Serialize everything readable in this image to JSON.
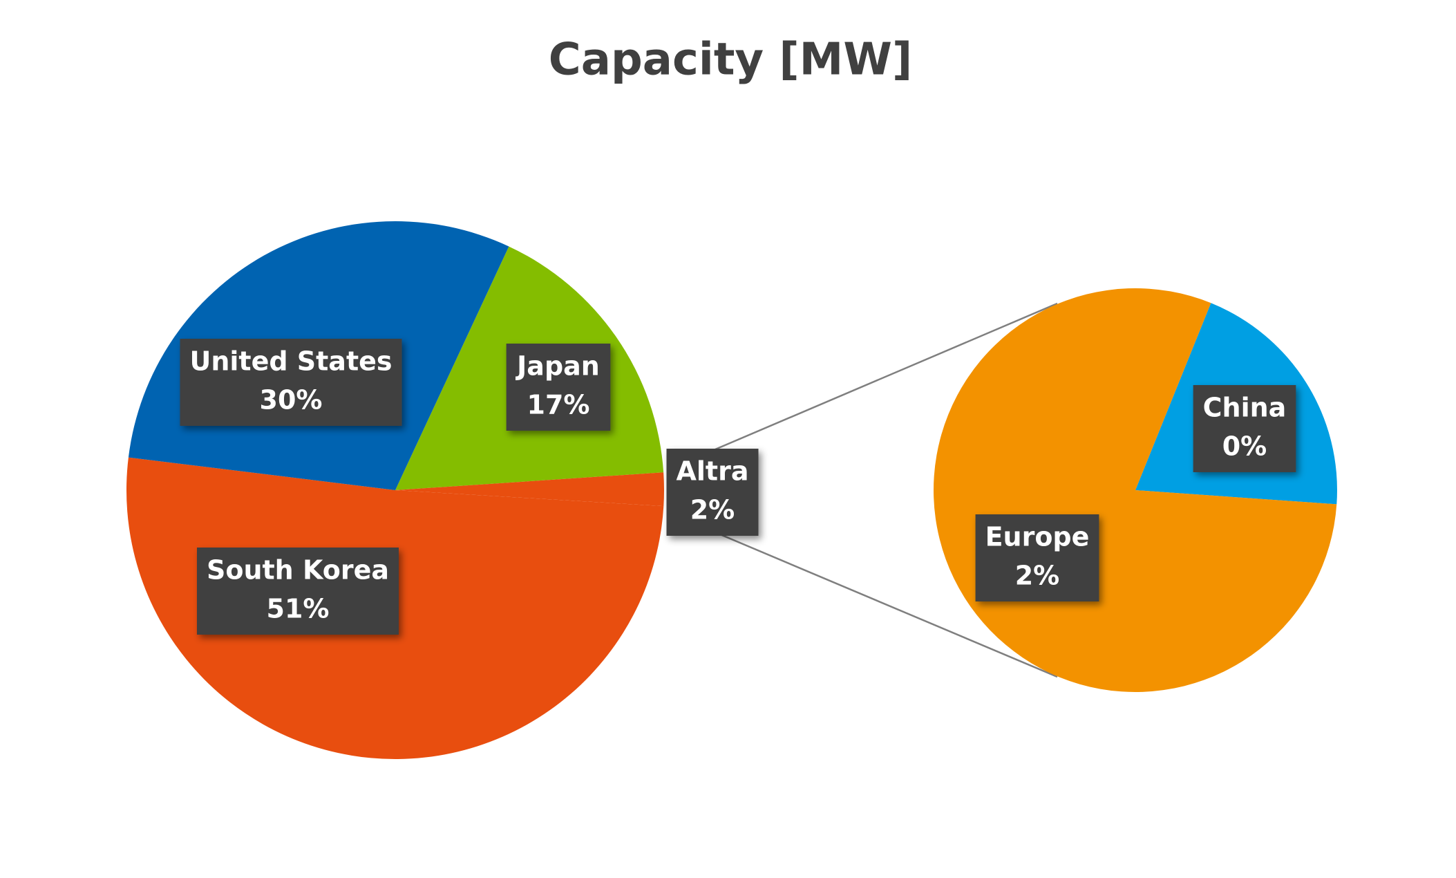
{
  "chart_data": {
    "type": "pie",
    "title": "Capacity [MW]",
    "categories": [
      "Japan",
      "Altra",
      "South Korea",
      "United States"
    ],
    "values": [
      17,
      2,
      51,
      30
    ],
    "value_labels": [
      "17%",
      "2%",
      "51%",
      "30%"
    ],
    "colors": [
      "#84bd00",
      "#e84e0f",
      "#e84e0f",
      "#0063b1"
    ],
    "secondary": {
      "categories": [
        "China",
        "Europe"
      ],
      "values": [
        0.4,
        1.6
      ],
      "value_labels": [
        "0%",
        "2%"
      ],
      "colors": [
        "#009fe3",
        "#f39200"
      ]
    }
  }
}
